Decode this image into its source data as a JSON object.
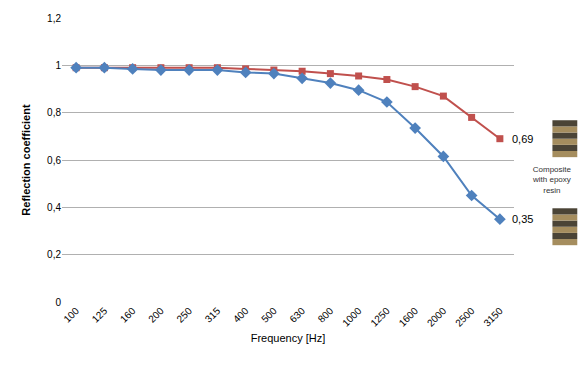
{
  "chart_data": {
    "type": "line",
    "x_label": "Frequency [Hz]",
    "y_label": "Reflection coefficient",
    "categories": [
      "100",
      "125",
      "160",
      "200",
      "250",
      "315",
      "400",
      "500",
      "630",
      "800",
      "1000",
      "1250",
      "1600",
      "2000",
      "2500",
      "3150"
    ],
    "series": [
      {
        "color": "#c0504d",
        "marker": "square",
        "line_style": "solid",
        "values": [
          0.99,
          0.99,
          0.99,
          0.99,
          0.99,
          0.99,
          0.985,
          0.98,
          0.975,
          0.965,
          0.955,
          0.94,
          0.91,
          0.87,
          0.78,
          0.69
        ]
      },
      {
        "color": "#4f81bd",
        "marker": "diamond",
        "line_style": "solid",
        "values": [
          0.99,
          0.99,
          0.985,
          0.98,
          0.98,
          0.98,
          0.97,
          0.965,
          0.945,
          0.925,
          0.895,
          0.845,
          0.735,
          0.615,
          0.45,
          0.35
        ]
      }
    ],
    "ylim": [
      0,
      1.2
    ],
    "yticks": [
      0,
      {
        "value": 0.2,
        "label": "0,2"
      },
      {
        "value": 0.4,
        "label": "0,4"
      },
      {
        "value": 0.6,
        "label": "0,6"
      },
      {
        "value": 0.8,
        "label": "0,8"
      },
      1,
      {
        "value": 1.2,
        "label": "1,2"
      }
    ],
    "grid": true,
    "annotations": [
      {
        "text": "0,69",
        "category": "3150",
        "value": 0.69
      },
      {
        "text": "0,35",
        "category": "3150",
        "value": 0.35
      },
      {
        "text": "Composite with epoxy resin"
      }
    ]
  }
}
